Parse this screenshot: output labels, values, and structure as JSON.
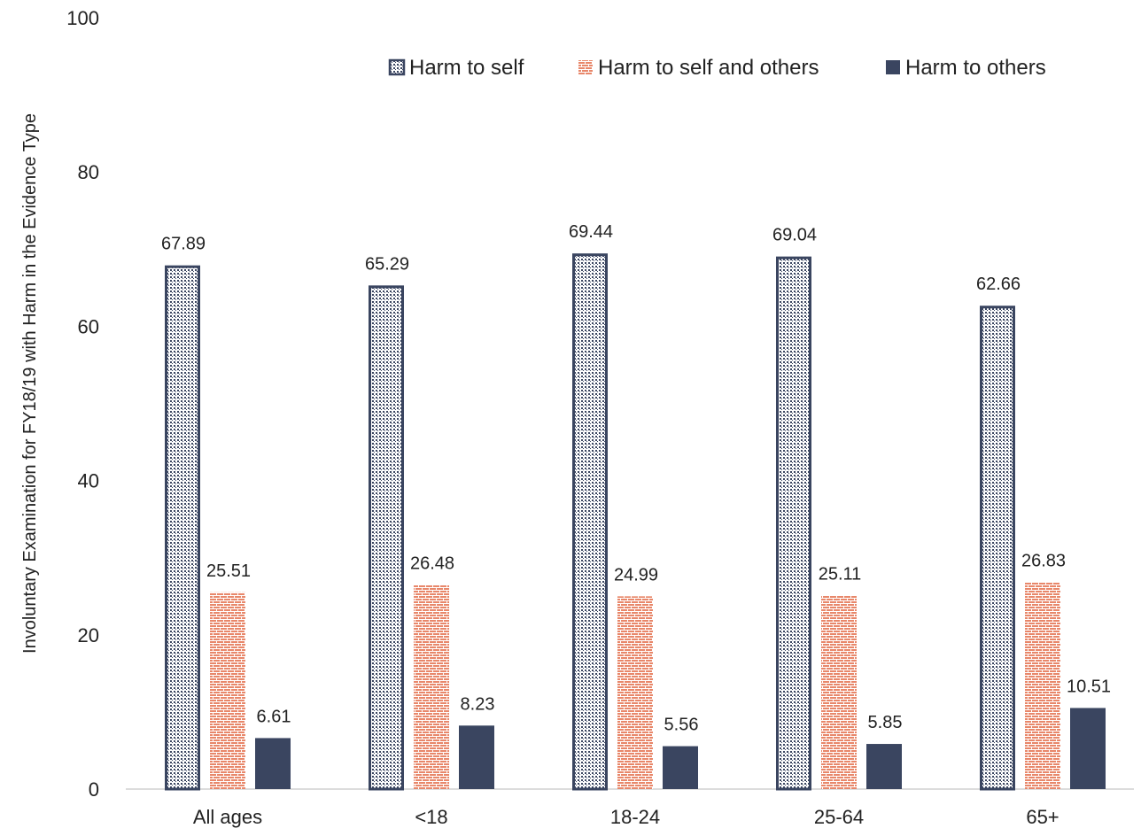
{
  "chart_data": {
    "type": "bar",
    "categories": [
      "All ages",
      "<18",
      "18-24",
      "25-64",
      "65+"
    ],
    "series": [
      {
        "name": "Harm to self",
        "values": [
          67.89,
          65.29,
          69.44,
          69.04,
          62.66
        ],
        "color": "#3a4560",
        "pattern": "dotted-hatch"
      },
      {
        "name": "Harm to self and others",
        "values": [
          25.51,
          26.48,
          24.99,
          25.11,
          26.83
        ],
        "color": "#e8876a",
        "pattern": "brick"
      },
      {
        "name": "Harm to others",
        "values": [
          6.61,
          8.23,
          5.56,
          5.85,
          10.51
        ],
        "color": "#3a4560",
        "pattern": "solid"
      }
    ],
    "ylabel": "Involuntary Examination for FY18/19 with Harm in the Evidence Type",
    "xlabel": "",
    "ylim": [
      0,
      100
    ],
    "yticks": [
      "0",
      "20",
      "40",
      "60",
      "80",
      "100"
    ],
    "grid": false,
    "legend_position": "top-right"
  }
}
